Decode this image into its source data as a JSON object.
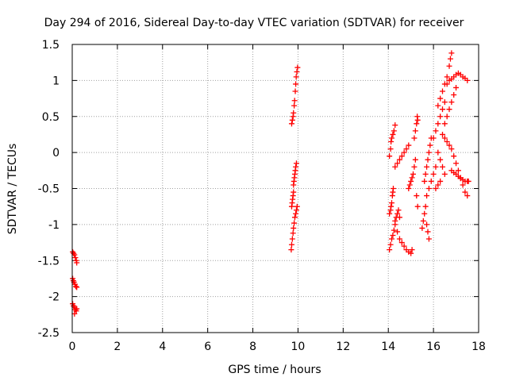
{
  "chart_data": {
    "type": "scatter",
    "title": "Day 294 of 2016, Sidereal Day-to-day VTEC variation (SDTVAR) for receiver",
    "xlabel": "GPS time / hours",
    "ylabel": "SDTVAR / TECUs",
    "xlim": [
      0,
      18
    ],
    "ylim": [
      -2.5,
      1.5
    ],
    "xticks": [
      "0",
      "2",
      "4",
      "6",
      "8",
      "10",
      "12",
      "14",
      "16",
      "18"
    ],
    "yticks": [
      "1.5",
      "1",
      "0.5",
      "0",
      "-0.5",
      "-1",
      "-1.5",
      "-2",
      "-2.5"
    ],
    "grid": true,
    "marker": "+",
    "color": "#ff0000",
    "series": [
      {
        "points": [
          [
            0.02,
            -1.38
          ],
          [
            0.06,
            -1.4
          ],
          [
            0.1,
            -1.42
          ],
          [
            0.14,
            -1.46
          ],
          [
            0.18,
            -1.5
          ],
          [
            0.2,
            -1.53
          ],
          [
            0.02,
            -1.75
          ],
          [
            0.05,
            -1.78
          ],
          [
            0.08,
            -1.8
          ],
          [
            0.12,
            -1.83
          ],
          [
            0.16,
            -1.86
          ],
          [
            0.2,
            -1.87
          ],
          [
            0.02,
            -2.1
          ],
          [
            0.06,
            -2.13
          ],
          [
            0.1,
            -2.15
          ],
          [
            0.14,
            -2.18
          ],
          [
            0.18,
            -2.2
          ],
          [
            0.1,
            -2.24
          ],
          [
            0.2,
            -2.17
          ],
          [
            9.7,
            -1.35
          ],
          [
            9.72,
            -1.28
          ],
          [
            9.75,
            -1.2
          ],
          [
            9.78,
            -1.12
          ],
          [
            9.8,
            -1.05
          ],
          [
            9.83,
            -0.98
          ],
          [
            9.86,
            -0.9
          ],
          [
            9.9,
            -0.85
          ],
          [
            9.93,
            -0.8
          ],
          [
            9.96,
            -0.75
          ],
          [
            9.72,
            -0.75
          ],
          [
            9.74,
            -0.7
          ],
          [
            9.76,
            -0.65
          ],
          [
            9.78,
            -0.6
          ],
          [
            9.8,
            -0.55
          ],
          [
            9.8,
            -0.45
          ],
          [
            9.82,
            -0.4
          ],
          [
            9.84,
            -0.35
          ],
          [
            9.86,
            -0.3
          ],
          [
            9.88,
            -0.25
          ],
          [
            9.9,
            -0.2
          ],
          [
            9.93,
            -0.15
          ],
          [
            9.72,
            0.4
          ],
          [
            9.75,
            0.45
          ],
          [
            9.78,
            0.5
          ],
          [
            9.8,
            0.55
          ],
          [
            9.83,
            0.65
          ],
          [
            9.85,
            0.72
          ],
          [
            9.88,
            0.85
          ],
          [
            9.9,
            0.95
          ],
          [
            9.92,
            1.05
          ],
          [
            9.95,
            1.12
          ],
          [
            9.98,
            1.18
          ],
          [
            14.05,
            -1.35
          ],
          [
            14.1,
            -1.28
          ],
          [
            14.15,
            -1.2
          ],
          [
            14.2,
            -1.15
          ],
          [
            14.25,
            -1.08
          ],
          [
            14.3,
            -1.0
          ],
          [
            14.05,
            -0.85
          ],
          [
            14.1,
            -0.8
          ],
          [
            14.12,
            -0.75
          ],
          [
            14.15,
            -0.7
          ],
          [
            14.18,
            -0.6
          ],
          [
            14.2,
            -0.55
          ],
          [
            14.22,
            -0.5
          ],
          [
            14.05,
            -0.05
          ],
          [
            14.1,
            0.05
          ],
          [
            14.12,
            0.15
          ],
          [
            14.15,
            0.2
          ],
          [
            14.2,
            0.25
          ],
          [
            14.25,
            0.3
          ],
          [
            14.3,
            0.38
          ],
          [
            14.3,
            -0.95
          ],
          [
            14.35,
            -0.9
          ],
          [
            14.4,
            -0.85
          ],
          [
            14.45,
            -0.8
          ],
          [
            14.5,
            -0.9
          ],
          [
            14.4,
            -1.1
          ],
          [
            14.5,
            -1.2
          ],
          [
            14.6,
            -1.25
          ],
          [
            14.7,
            -1.3
          ],
          [
            14.8,
            -1.35
          ],
          [
            14.9,
            -1.38
          ],
          [
            15.0,
            -1.4
          ],
          [
            15.05,
            -1.35
          ],
          [
            14.3,
            -0.2
          ],
          [
            14.4,
            -0.15
          ],
          [
            14.5,
            -0.1
          ],
          [
            14.6,
            -0.05
          ],
          [
            14.7,
            0.0
          ],
          [
            14.8,
            0.05
          ],
          [
            14.9,
            0.1
          ],
          [
            14.9,
            -0.5
          ],
          [
            14.95,
            -0.45
          ],
          [
            15.0,
            -0.4
          ],
          [
            15.05,
            -0.35
          ],
          [
            15.1,
            -0.3
          ],
          [
            15.15,
            -0.2
          ],
          [
            15.2,
            -0.1
          ],
          [
            15.15,
            0.2
          ],
          [
            15.2,
            0.3
          ],
          [
            15.25,
            0.4
          ],
          [
            15.28,
            0.5
          ],
          [
            15.3,
            0.45
          ],
          [
            15.3,
            -0.75
          ],
          [
            15.25,
            -0.6
          ],
          [
            15.5,
            -1.05
          ],
          [
            15.55,
            -0.95
          ],
          [
            15.6,
            -0.85
          ],
          [
            15.65,
            -0.75
          ],
          [
            15.7,
            -1.0
          ],
          [
            15.75,
            -1.1
          ],
          [
            15.8,
            -1.2
          ],
          [
            15.6,
            -0.4
          ],
          [
            15.65,
            -0.3
          ],
          [
            15.7,
            -0.2
          ],
          [
            15.75,
            -0.1
          ],
          [
            15.8,
            0.0
          ],
          [
            15.85,
            0.1
          ],
          [
            15.9,
            0.2
          ],
          [
            15.7,
            -0.6
          ],
          [
            15.8,
            -0.5
          ],
          [
            15.9,
            -0.4
          ],
          [
            16.0,
            -0.3
          ],
          [
            16.1,
            -0.2
          ],
          [
            16.0,
            0.2
          ],
          [
            16.1,
            0.3
          ],
          [
            16.2,
            0.4
          ],
          [
            16.3,
            0.5
          ],
          [
            16.4,
            0.6
          ],
          [
            16.5,
            0.7
          ],
          [
            16.2,
            0.65
          ],
          [
            16.3,
            0.75
          ],
          [
            16.4,
            0.85
          ],
          [
            16.5,
            0.95
          ],
          [
            16.6,
            1.05
          ],
          [
            16.7,
            1.2
          ],
          [
            16.75,
            1.3
          ],
          [
            16.8,
            1.38
          ],
          [
            16.6,
            0.95
          ],
          [
            16.7,
            1.0
          ],
          [
            16.8,
            1.02
          ],
          [
            16.9,
            1.05
          ],
          [
            17.0,
            1.08
          ],
          [
            17.1,
            1.1
          ],
          [
            17.2,
            1.08
          ],
          [
            17.3,
            1.05
          ],
          [
            17.4,
            1.03
          ],
          [
            17.5,
            1.0
          ],
          [
            16.5,
            0.4
          ],
          [
            16.6,
            0.5
          ],
          [
            16.7,
            0.6
          ],
          [
            16.8,
            0.7
          ],
          [
            16.9,
            0.8
          ],
          [
            17.0,
            0.9
          ],
          [
            16.4,
            0.25
          ],
          [
            16.5,
            0.2
          ],
          [
            16.6,
            0.15
          ],
          [
            16.7,
            0.1
          ],
          [
            16.8,
            0.05
          ],
          [
            16.9,
            -0.05
          ],
          [
            17.0,
            -0.15
          ],
          [
            17.1,
            -0.25
          ],
          [
            17.2,
            -0.35
          ],
          [
            17.3,
            -0.45
          ],
          [
            17.4,
            -0.55
          ],
          [
            17.5,
            -0.6
          ],
          [
            16.8,
            -0.25
          ],
          [
            16.9,
            -0.28
          ],
          [
            17.0,
            -0.3
          ],
          [
            17.1,
            -0.33
          ],
          [
            17.2,
            -0.36
          ],
          [
            17.3,
            -0.38
          ],
          [
            17.4,
            -0.4
          ],
          [
            17.5,
            -0.4
          ],
          [
            17.55,
            -0.4
          ],
          [
            16.2,
            0.0
          ],
          [
            16.3,
            -0.1
          ],
          [
            16.4,
            -0.2
          ],
          [
            16.5,
            -0.3
          ],
          [
            16.1,
            -0.5
          ],
          [
            16.2,
            -0.45
          ],
          [
            16.3,
            -0.4
          ]
        ]
      }
    ]
  }
}
